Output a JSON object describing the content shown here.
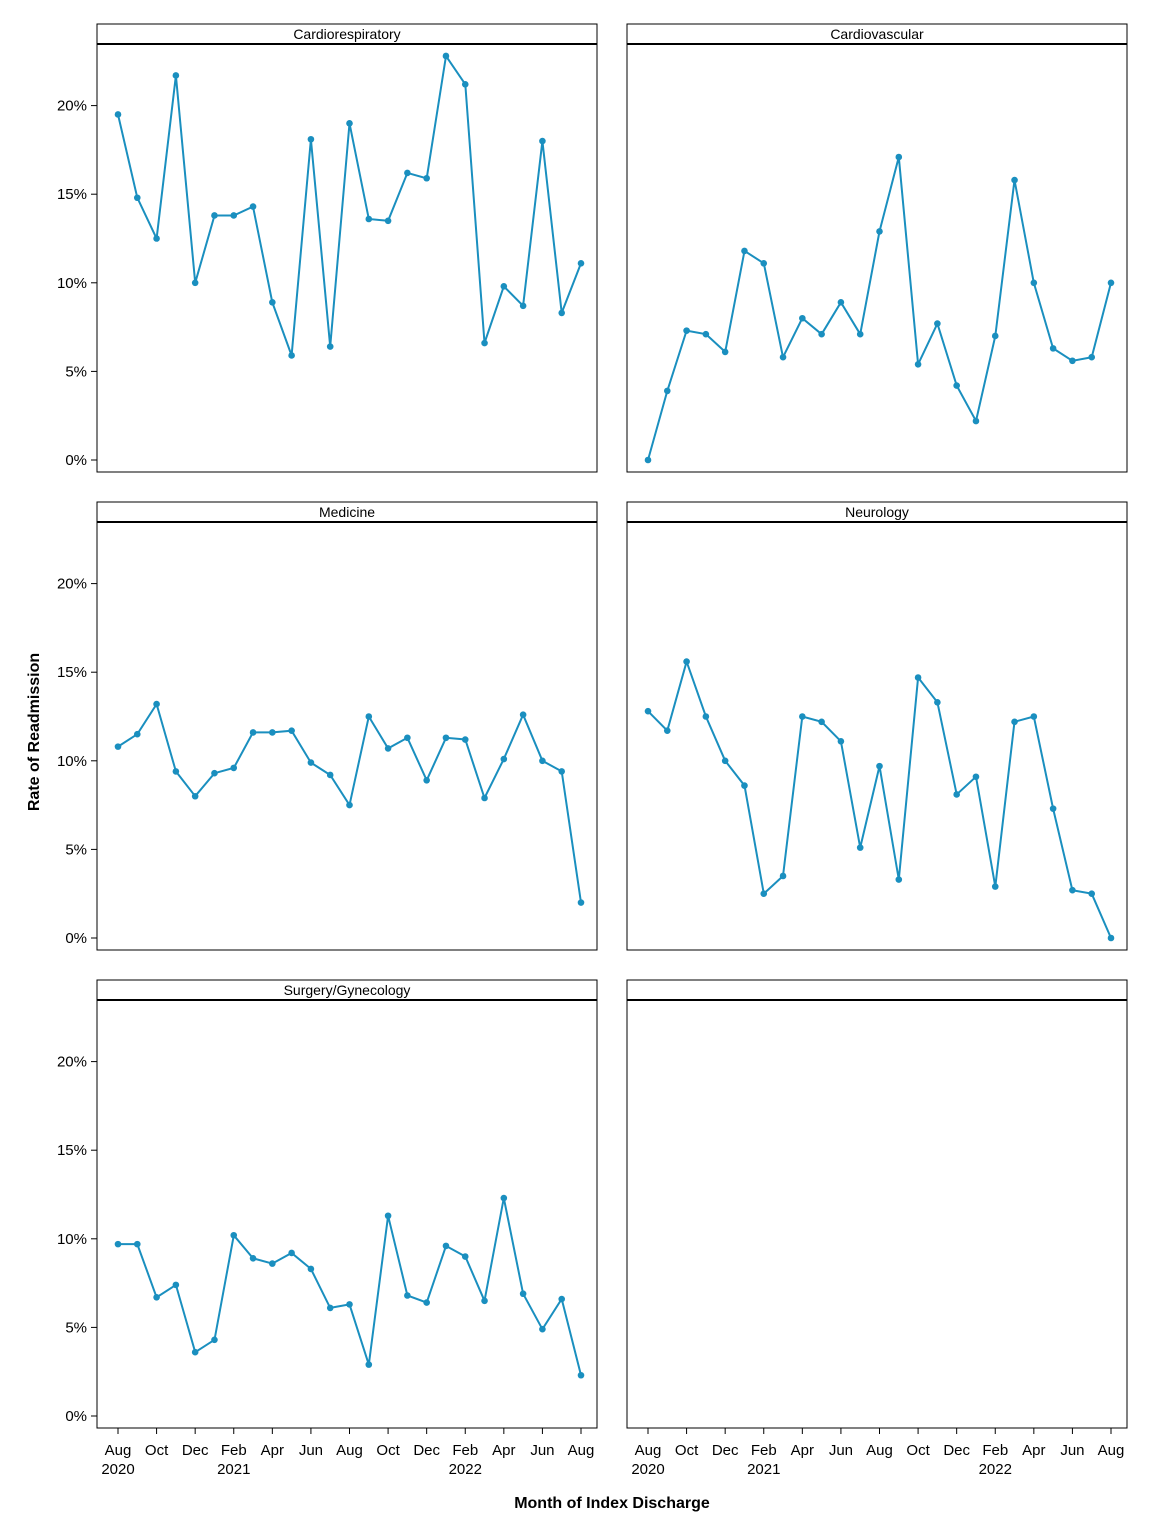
{
  "chart_data": {
    "type": "line",
    "xlabel": "Month of Index Discharge",
    "ylabel": "Rate of Readmission",
    "ylim": [
      0,
      23.5
    ],
    "y_ticks": [
      "0%",
      "5%",
      "10%",
      "15%",
      "20%"
    ],
    "y_tick_values": [
      0,
      5,
      10,
      15,
      20
    ],
    "x": [
      "Aug 2020",
      "Sep 2020",
      "Oct 2020",
      "Nov 2020",
      "Dec 2020",
      "Jan 2021",
      "Feb 2021",
      "Mar 2021",
      "Apr 2021",
      "May 2021",
      "Jun 2021",
      "Jul 2021",
      "Aug 2021",
      "Sep 2021",
      "Oct 2021",
      "Nov 2021",
      "Dec 2021",
      "Jan 2022",
      "Feb 2022",
      "Mar 2022",
      "Apr 2022",
      "May 2022",
      "Jun 2022",
      "Jul 2022",
      "Aug 2022"
    ],
    "x_ticks": [
      {
        "month": "Aug",
        "year": "2020",
        "index": 0
      },
      {
        "month": "Oct",
        "year": "",
        "index": 2
      },
      {
        "month": "Dec",
        "year": "",
        "index": 4
      },
      {
        "month": "Feb",
        "year": "2021",
        "index": 6
      },
      {
        "month": "Apr",
        "year": "",
        "index": 8
      },
      {
        "month": "Jun",
        "year": "",
        "index": 10
      },
      {
        "month": "Aug",
        "year": "",
        "index": 12
      },
      {
        "month": "Oct",
        "year": "",
        "index": 14
      },
      {
        "month": "Dec",
        "year": "",
        "index": 16
      },
      {
        "month": "Feb",
        "year": "2022",
        "index": 18
      },
      {
        "month": "Apr",
        "year": "",
        "index": 20
      },
      {
        "month": "Jun",
        "year": "",
        "index": 22
      },
      {
        "month": "Aug",
        "year": "",
        "index": 24
      }
    ],
    "line_color": "#1a8fbf",
    "panels": [
      {
        "title": "Cardiorespiratory",
        "values": [
          19.5,
          14.8,
          12.5,
          21.7,
          10.0,
          13.8,
          13.8,
          14.3,
          8.9,
          5.9,
          18.1,
          6.4,
          19.0,
          13.6,
          13.5,
          16.2,
          15.9,
          22.8,
          21.2,
          6.6,
          9.8,
          8.7,
          18.0,
          8.3,
          11.1
        ]
      },
      {
        "title": "Cardiovascular",
        "values": [
          0.0,
          3.9,
          7.3,
          7.1,
          6.1,
          11.8,
          11.1,
          5.8,
          8.0,
          7.1,
          8.9,
          7.1,
          12.9,
          17.1,
          5.4,
          7.7,
          4.2,
          2.2,
          7.0,
          15.8,
          10.0,
          6.3,
          5.6,
          5.8,
          10.0
        ]
      },
      {
        "title": "Medicine",
        "values": [
          10.8,
          11.5,
          13.2,
          9.4,
          8.0,
          9.3,
          9.6,
          11.6,
          11.6,
          11.7,
          9.9,
          9.2,
          7.5,
          12.5,
          10.7,
          11.3,
          8.9,
          11.3,
          11.2,
          7.9,
          10.1,
          12.6,
          10.0,
          9.4,
          2.0
        ]
      },
      {
        "title": "Neurology",
        "values": [
          12.8,
          11.7,
          15.6,
          12.5,
          10.0,
          8.6,
          2.5,
          3.5,
          12.5,
          12.2,
          11.1,
          5.1,
          9.7,
          3.3,
          14.7,
          13.3,
          8.1,
          9.1,
          2.9,
          12.2,
          12.5,
          7.3,
          2.7,
          2.5,
          0.0
        ]
      },
      {
        "title": "Surgery/Gynecology",
        "values": [
          9.7,
          9.7,
          6.7,
          7.4,
          3.6,
          4.3,
          10.2,
          8.9,
          8.6,
          9.2,
          8.3,
          6.1,
          6.3,
          2.9,
          11.3,
          6.8,
          6.4,
          9.6,
          9.0,
          6.5,
          12.3,
          6.9,
          4.9,
          6.6,
          2.3
        ]
      },
      {
        "title": "",
        "values": []
      }
    ]
  }
}
